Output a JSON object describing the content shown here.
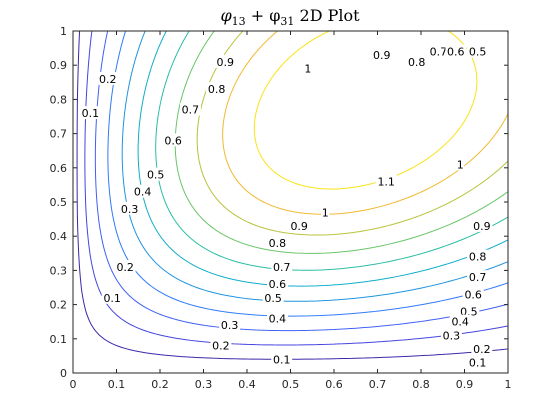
{
  "chart_data": {
    "type": "contour",
    "title_parts": [
      "φ",
      "13",
      " + φ",
      "31",
      " 2D Plot"
    ],
    "xlim": [
      0,
      1
    ],
    "ylim": [
      0,
      1
    ],
    "x_ticks": [
      "0",
      "0.1",
      "0.2",
      "0.3",
      "0.4",
      "0.5",
      "0.6",
      "0.7",
      "0.8",
      "0.9",
      "1"
    ],
    "y_ticks": [
      "0",
      "0.1",
      "0.2",
      "0.3",
      "0.4",
      "0.5",
      "0.6",
      "0.7",
      "0.8",
      "0.9",
      "1"
    ],
    "grid": false,
    "levels": [
      0.1,
      0.2,
      0.3,
      0.4,
      0.5,
      0.6,
      0.7,
      0.8,
      0.9,
      1.0,
      1.1
    ],
    "level_colors": [
      "#3e26a8",
      "#4544e0",
      "#3f5ff5",
      "#2f7af9",
      "#1e95e0",
      "#0faec9",
      "#29bea3",
      "#6ac569",
      "#b9c23b",
      "#f1b92f",
      "#f9e318"
    ],
    "labels": [
      {
        "text": "0.1",
        "x": 0.04,
        "y": 0.76
      },
      {
        "text": "0.2",
        "x": 0.08,
        "y": 0.86
      },
      {
        "text": "0.7",
        "x": 0.27,
        "y": 0.77
      },
      {
        "text": "0.6",
        "x": 0.23,
        "y": 0.68
      },
      {
        "text": "0.8",
        "x": 0.33,
        "y": 0.83
      },
      {
        "text": "0.9",
        "x": 0.35,
        "y": 0.91
      },
      {
        "text": "1",
        "x": 0.54,
        "y": 0.89
      },
      {
        "text": "0.9",
        "x": 0.71,
        "y": 0.93
      },
      {
        "text": "0.8",
        "x": 0.79,
        "y": 0.91
      },
      {
        "text": "0.7",
        "x": 0.84,
        "y": 0.94
      },
      {
        "text": "0.6",
        "x": 0.88,
        "y": 0.94
      },
      {
        "text": "0.5",
        "x": 0.93,
        "y": 0.94
      },
      {
        "text": "0.5",
        "x": 0.19,
        "y": 0.58
      },
      {
        "text": "0.4",
        "x": 0.16,
        "y": 0.53
      },
      {
        "text": "0.3",
        "x": 0.13,
        "y": 0.48
      },
      {
        "text": "0.2",
        "x": 0.12,
        "y": 0.31
      },
      {
        "text": "0.1",
        "x": 0.09,
        "y": 0.22
      },
      {
        "text": "1.1",
        "x": 0.72,
        "y": 0.56
      },
      {
        "text": "1",
        "x": 0.89,
        "y": 0.61
      },
      {
        "text": "1",
        "x": 0.58,
        "y": 0.47
      },
      {
        "text": "0.9",
        "x": 0.52,
        "y": 0.43
      },
      {
        "text": "0.8",
        "x": 0.47,
        "y": 0.38
      },
      {
        "text": "0.7",
        "x": 0.48,
        "y": 0.31
      },
      {
        "text": "0.6",
        "x": 0.47,
        "y": 0.26
      },
      {
        "text": "0.5",
        "x": 0.46,
        "y": 0.22
      },
      {
        "text": "0.4",
        "x": 0.47,
        "y": 0.16
      },
      {
        "text": "0.3",
        "x": 0.36,
        "y": 0.14
      },
      {
        "text": "0.2",
        "x": 0.34,
        "y": 0.08
      },
      {
        "text": "0.1",
        "x": 0.48,
        "y": 0.04
      },
      {
        "text": "0.9",
        "x": 0.94,
        "y": 0.43
      },
      {
        "text": "0.8",
        "x": 0.93,
        "y": 0.34
      },
      {
        "text": "0.7",
        "x": 0.93,
        "y": 0.28
      },
      {
        "text": "0.6",
        "x": 0.92,
        "y": 0.23
      },
      {
        "text": "0.5",
        "x": 0.91,
        "y": 0.18
      },
      {
        "text": "0.4",
        "x": 0.89,
        "y": 0.15
      },
      {
        "text": "0.3",
        "x": 0.87,
        "y": 0.11
      },
      {
        "text": "0.2",
        "x": 0.94,
        "y": 0.07
      },
      {
        "text": "0.1",
        "x": 0.93,
        "y": 0.03
      }
    ]
  }
}
